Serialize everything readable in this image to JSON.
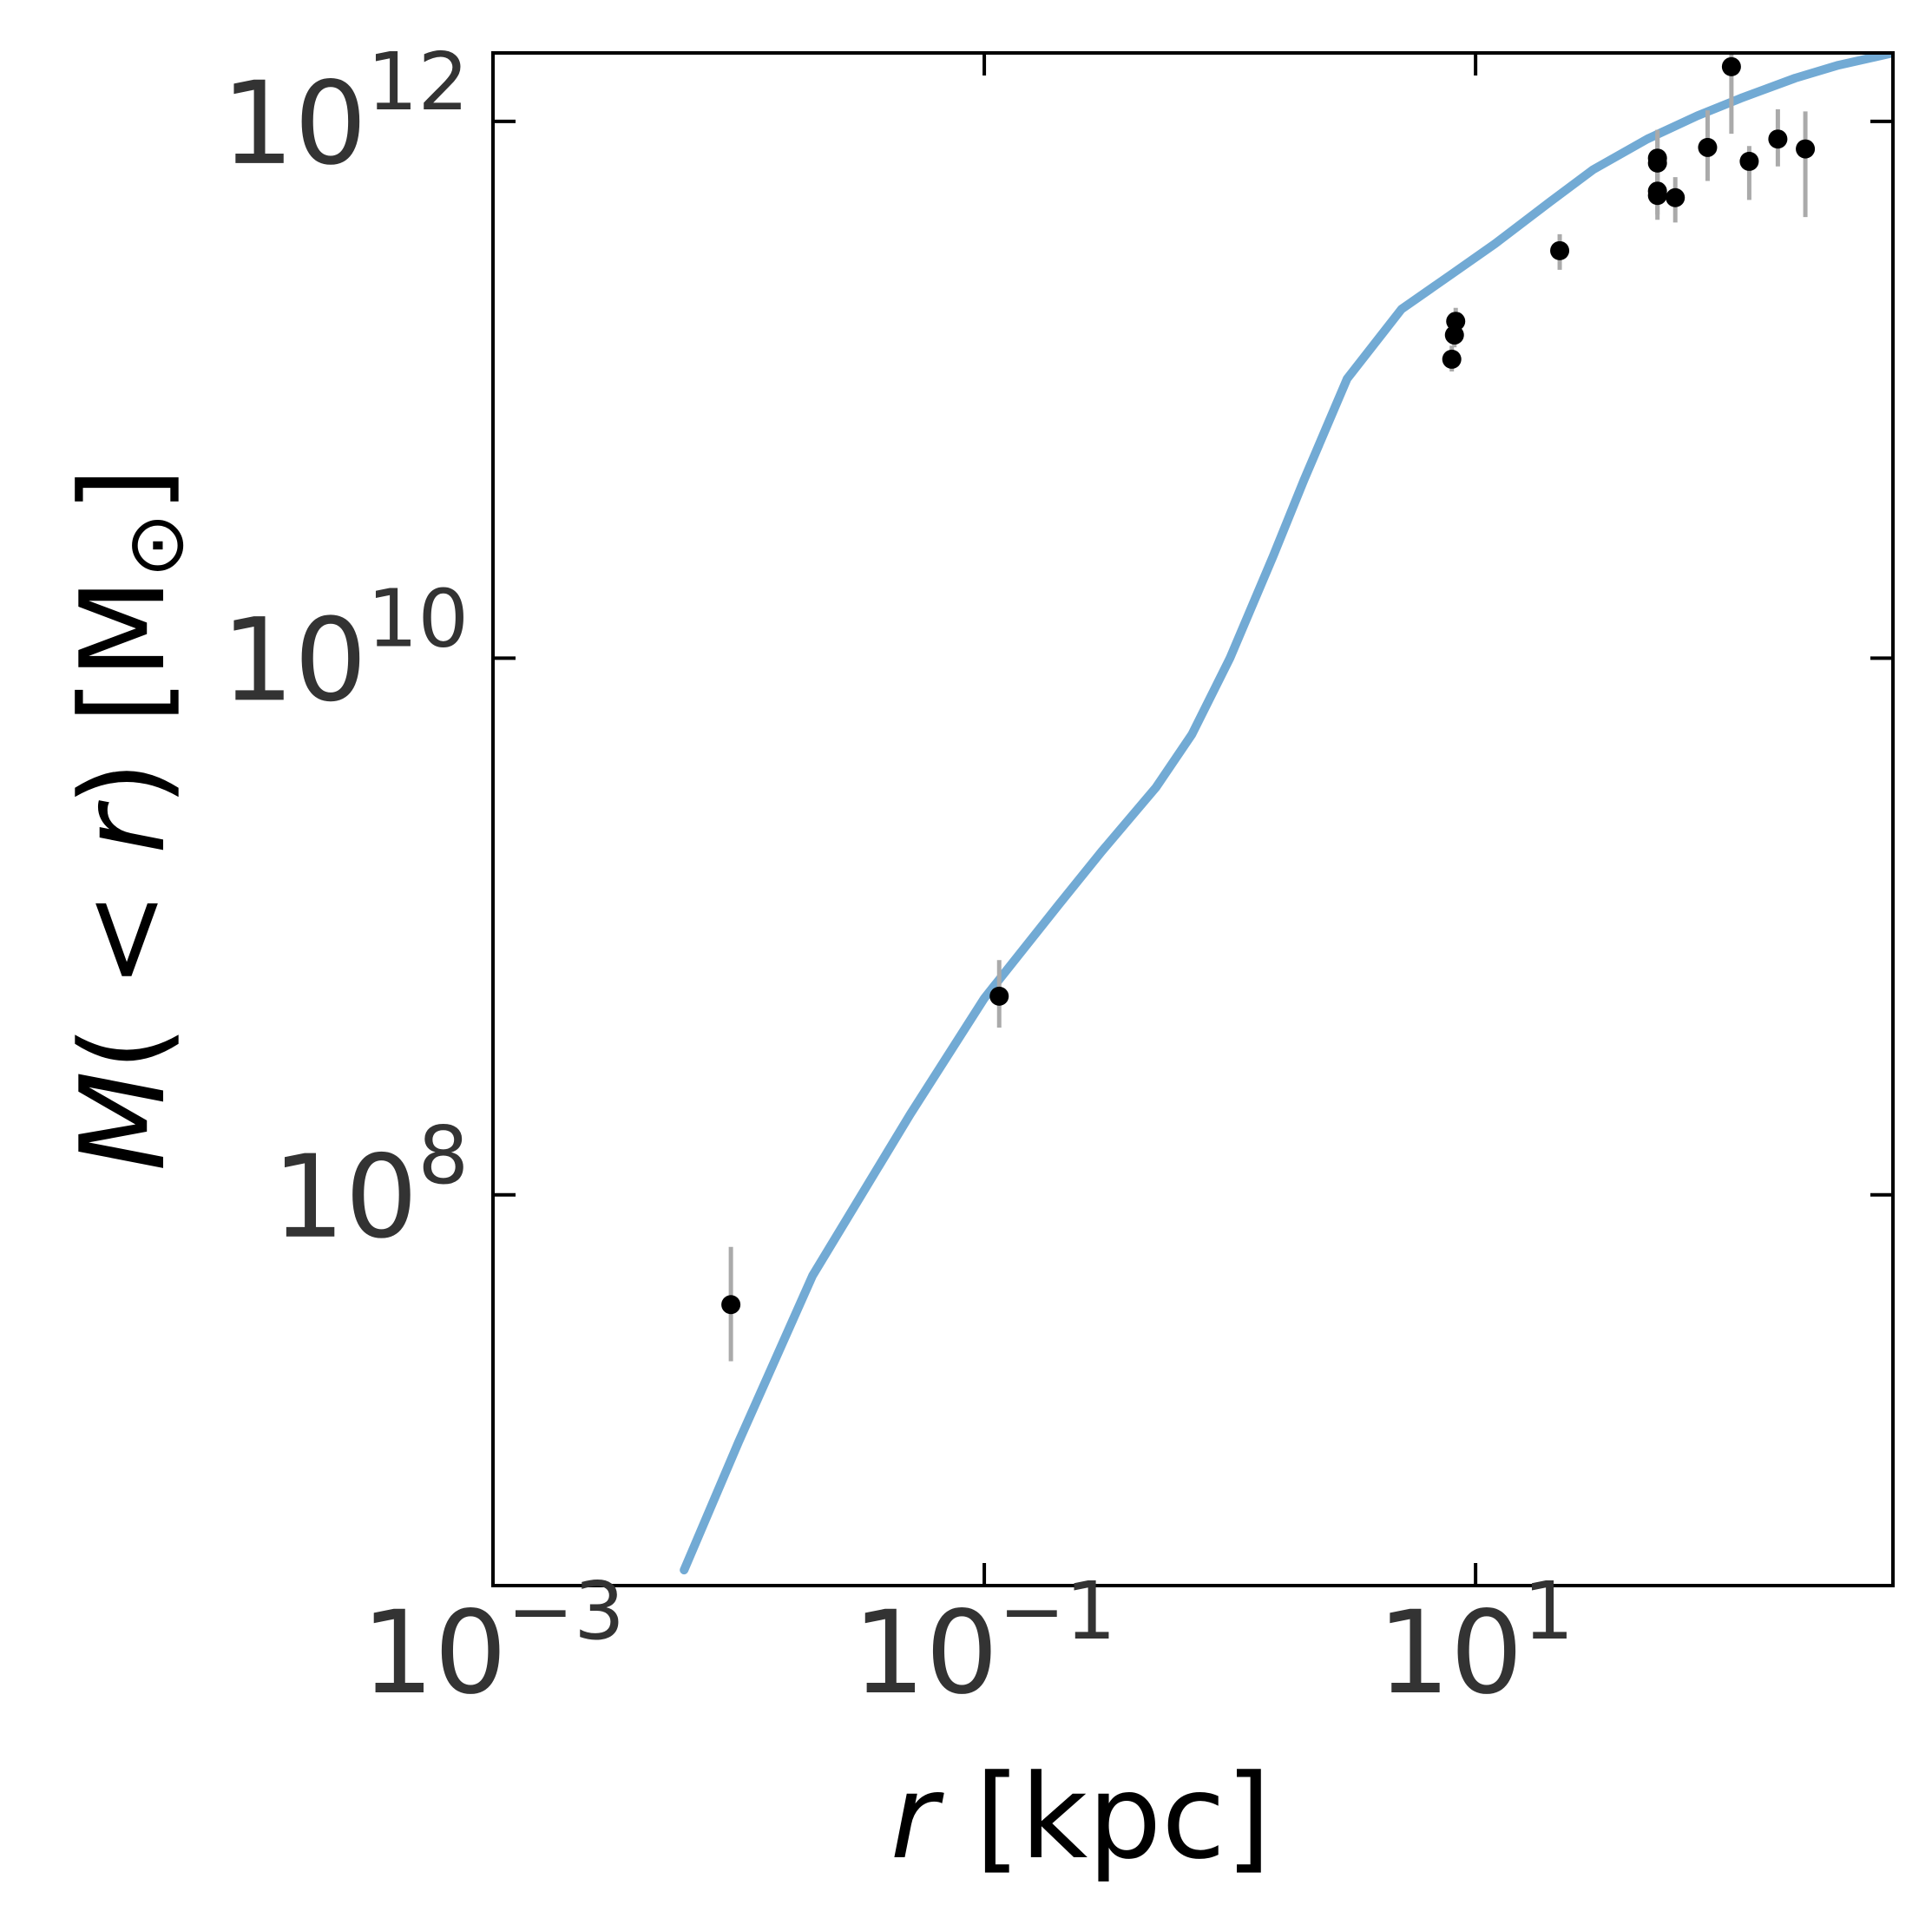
{
  "chart_data": {
    "type": "scatter",
    "xlabel": {
      "var": "r",
      "unit": " [kpc]"
    },
    "ylabel": {
      "var": "M",
      "mid": "( < ",
      "var2": "r",
      "end": ") [M",
      "sun": "⊙",
      "close": "]"
    },
    "x_scale": "log",
    "y_scale": "log",
    "xlim": [
      0.001,
      500
    ],
    "ylim": [
      3500000.0,
      1800000000000.0
    ],
    "x_ticks": [
      {
        "value": 0.001,
        "base": "10",
        "exp": "−3"
      },
      {
        "value": 0.1,
        "base": "10",
        "exp": "−1"
      },
      {
        "value": 10,
        "base": "10",
        "exp": "1"
      }
    ],
    "y_ticks": [
      {
        "value": 100000000.0,
        "base": "10",
        "exp": "8"
      },
      {
        "value": 10000000000.0,
        "base": "10",
        "exp": "10"
      },
      {
        "value": 1000000000000.0,
        "base": "10",
        "exp": "12"
      }
    ],
    "grid": false,
    "colors": {
      "model": "#72aad4",
      "points": "#000000",
      "errorbars": "#aaaaaa",
      "frame": "#000000"
    },
    "series": [
      {
        "type": "line",
        "x": [
          0.006,
          0.01,
          0.02,
          0.05,
          0.1,
          0.2,
          0.3,
          0.5,
          0.7,
          1.0,
          1.5,
          2.0,
          3.0,
          5.0,
          8.0,
          12.0,
          20.0,
          30.0,
          50.0,
          80.0,
          120.0,
          200.0,
          300.0,
          500.0
        ],
        "y": [
          4000000.0,
          12000000.0,
          50000000.0,
          200000000.0,
          540000000.0,
          1200000000.0,
          1900000000.0,
          3300000000.0,
          5200000000.0,
          10000000000.0,
          24000000000.0,
          46000000000.0,
          110000000000.0,
          200000000000.0,
          270000000000.0,
          350000000000.0,
          500000000000.0,
          660000000000.0,
          860000000000.0,
          1050000000000.0,
          1220000000000.0,
          1450000000000.0,
          1620000000000.0,
          1800000000000.0
        ]
      },
      {
        "type": "scatter",
        "x": [
          0.0093,
          0.115,
          8.2,
          8.3,
          8.0,
          22.0,
          55.0,
          55.0,
          55.0,
          55.0,
          65.0,
          88.0,
          110.0,
          130.0,
          170.0,
          220.0
        ],
        "y": [
          39000000.0,
          550000000.0,
          160000000000.0,
          180000000000.0,
          130000000000.0,
          330000000000.0,
          700000000000.0,
          730000000000.0,
          530000000000.0,
          550000000000.0,
          520000000000.0,
          800000000000.0,
          1600000000000.0,
          710000000000.0,
          860000000000.0,
          790000000000.0
        ],
        "err_low": [
          15000000.0,
          130000000.0,
          16000000000.0,
          18000000000.0,
          13000000000.0,
          50000000000.0,
          150000000000.0,
          150000000000.0,
          100000000000.0,
          100000000000.0,
          100000000000.0,
          200000000000.0,
          700000000000.0,
          200000000000.0,
          180000000000.0,
          350000000000.0
        ],
        "err_high": [
          25000000.0,
          200000000.0,
          20000000000.0,
          22000000000.0,
          16000000000.0,
          50000000000.0,
          200000000000.0,
          200000000000.0,
          120000000000.0,
          120000000000.0,
          100000000000.0,
          300000000000.0,
          800000000000.0,
          100000000000.0,
          250000000000.0,
          300000000000.0
        ]
      }
    ]
  }
}
